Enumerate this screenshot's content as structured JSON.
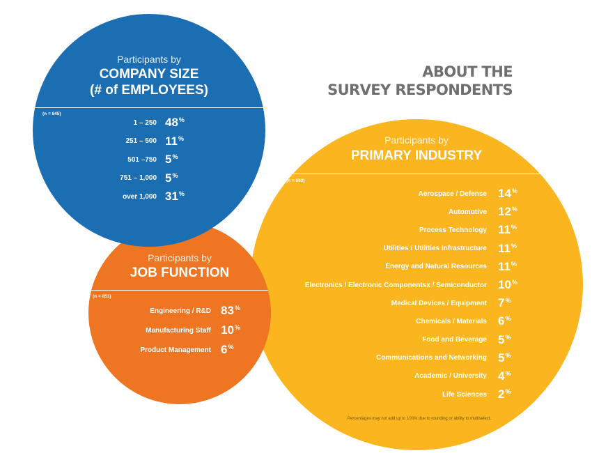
{
  "page": {
    "title_line1": "ABOUT THE",
    "title_line2": "SURVEY RESPONDENTS"
  },
  "colors": {
    "company_size": "#1c6eb3",
    "job_function": "#ee7623",
    "primary_industry": "#fbb61f",
    "title_gray": "#6e6f71"
  },
  "chart_data": [
    {
      "type": "table",
      "subtitle": "Participants by",
      "title": "COMPANY SIZE",
      "title_line2": "(# of EMPLOYEES)",
      "n_label": "(n = 845)",
      "unit": "%",
      "categories": [
        "1 – 250",
        "251 – 500",
        "501 –750",
        "751 – 1,000",
        "over 1,000"
      ],
      "values": [
        48,
        11,
        5,
        5,
        31
      ]
    },
    {
      "type": "table",
      "subtitle": "Participants by",
      "title": "JOB FUNCTION",
      "n_label": "(n = 851)",
      "unit": "%",
      "categories": [
        "Engineering / R&D",
        "Manufacturing Staff",
        "Product Management"
      ],
      "values": [
        83,
        10,
        6
      ]
    },
    {
      "type": "table",
      "subtitle": "Participants by",
      "title": "PRIMARY INDUSTRY",
      "n_label": "(n = 693)",
      "unit": "%",
      "categories": [
        "Aerospace / Defense",
        "Automotive",
        "Process Technology",
        "Utilities / Utilities Infrastructure",
        "Energy and Natural Resources",
        "Electronics / Electronic Componentsx / Semiconductor",
        "Medical Devices / Equipment",
        "Chemicals / Materials",
        "Food and Beverage",
        "Communications and Networking",
        "Academic / University",
        "Life Sciences"
      ],
      "values": [
        14,
        12,
        11,
        11,
        11,
        10,
        7,
        6,
        5,
        5,
        4,
        2
      ],
      "footnote": "Percentages may not add up to 100% due to rounding or ability to multiselect."
    }
  ]
}
